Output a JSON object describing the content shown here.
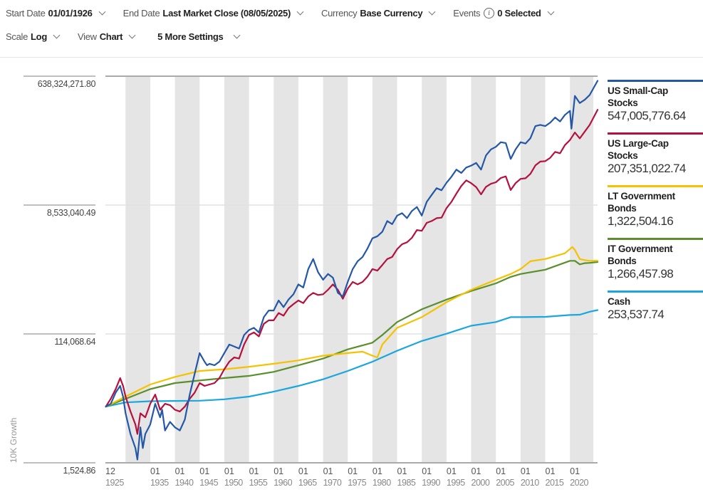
{
  "toolbar": {
    "start_date": {
      "label": "Start Date",
      "value": "01/01/1926"
    },
    "end_date": {
      "label": "End Date",
      "value": "Last Market Close (08/05/2025)"
    },
    "currency": {
      "label": "Currency",
      "value": "Base Currency"
    },
    "events": {
      "label": "Events",
      "value": "0 Selected",
      "icon": "info-icon"
    },
    "scale": {
      "label": "Scale",
      "value": "Log"
    },
    "view": {
      "label": "View",
      "value": "Chart"
    },
    "more_settings": {
      "value": "5 More Settings"
    }
  },
  "legend": [
    {
      "name": "US Small-Cap Stocks",
      "name_line1": "US Small-Cap",
      "name_line2": "Stocks",
      "value": "547,005,776.64",
      "color": "#2557a7"
    },
    {
      "name": "US Large-Cap Stocks",
      "name_line1": "US Large-Cap",
      "name_line2": "Stocks",
      "value": "207,351,022.74",
      "color": "#b5113e"
    },
    {
      "name": "LT Government Bonds",
      "name_line1": "LT Government",
      "name_line2": "Bonds",
      "value": "1,322,504.16",
      "color": "#f5c200"
    },
    {
      "name": "IT Government Bonds",
      "name_line1": "IT Government",
      "name_line2": "Bonds",
      "value": "1,266,457.98",
      "color": "#5a8f2e"
    },
    {
      "name": "Cash",
      "name_line1": "Cash",
      "name_line2": "",
      "value": "253,537.74",
      "color": "#1aa6de"
    }
  ],
  "chart_data": {
    "type": "line",
    "title": "",
    "xlabel": "",
    "ylabel": "10K Growth",
    "yscale": "log",
    "ylim": [
      1524.86,
      638324271.8
    ],
    "xlim": [
      1925.92,
      2025.6
    ],
    "y_ticks": [
      "638,324,271.80",
      "8,533,040.49",
      "114,068.64",
      "1,524.86"
    ],
    "y_tick_values": [
      638324271.8,
      8533040.49,
      114068.64,
      1524.86
    ],
    "x_ticks": [
      {
        "month": "12",
        "year": "1925",
        "value": 1925.92
      },
      {
        "month": "01",
        "year": "1935",
        "value": 1935
      },
      {
        "month": "01",
        "year": "1940",
        "value": 1940
      },
      {
        "month": "01",
        "year": "1945",
        "value": 1945
      },
      {
        "month": "01",
        "year": "1950",
        "value": 1950
      },
      {
        "month": "01",
        "year": "1955",
        "value": 1955
      },
      {
        "month": "01",
        "year": "1960",
        "value": 1960
      },
      {
        "month": "01",
        "year": "1965",
        "value": 1965
      },
      {
        "month": "01",
        "year": "1970",
        "value": 1970
      },
      {
        "month": "01",
        "year": "1975",
        "value": 1975
      },
      {
        "month": "01",
        "year": "1980",
        "value": 1980
      },
      {
        "month": "01",
        "year": "1985",
        "value": 1985
      },
      {
        "month": "01",
        "year": "1990",
        "value": 1990
      },
      {
        "month": "01",
        "year": "1995",
        "value": 1995
      },
      {
        "month": "01",
        "year": "2000",
        "value": 2000
      },
      {
        "month": "01",
        "year": "2005",
        "value": 2005
      },
      {
        "month": "01",
        "year": "2010",
        "value": 2010
      },
      {
        "month": "01",
        "year": "2015",
        "value": 2015
      },
      {
        "month": "01",
        "year": "2020",
        "value": 2020
      }
    ],
    "shaded_bands": [
      [
        1930,
        1935
      ],
      [
        1940,
        1945
      ],
      [
        1950,
        1955
      ],
      [
        1960,
        1965
      ],
      [
        1970,
        1975
      ],
      [
        1980,
        1985
      ],
      [
        1990,
        1995
      ],
      [
        2000,
        2005
      ],
      [
        2010,
        2015
      ],
      [
        2020,
        2025
      ]
    ],
    "grid": true,
    "legend_position": "right",
    "series": [
      {
        "name": "US Small-Cap Stocks",
        "color": "#2557a7",
        "x": [
          1926,
          1927,
          1928,
          1928.9,
          1929.5,
          1930,
          1931,
          1932,
          1932.4,
          1933,
          1933.5,
          1934,
          1935,
          1936,
          1937,
          1937.4,
          1938,
          1939,
          1940,
          1941,
          1942,
          1943,
          1944,
          1945,
          1946,
          1946.5,
          1947,
          1948,
          1949,
          1950,
          1951,
          1952,
          1953,
          1954,
          1955,
          1956,
          1957,
          1958,
          1959,
          1960,
          1961,
          1962,
          1963,
          1964,
          1965,
          1966,
          1967,
          1968,
          1969,
          1970,
          1971,
          1972,
          1973,
          1974,
          1975,
          1976,
          1977,
          1978,
          1979,
          1980,
          1981,
          1982,
          1983,
          1984,
          1985,
          1986,
          1987,
          1988,
          1989,
          1990,
          1991,
          1992,
          1993,
          1994,
          1995,
          1996,
          1997,
          1998,
          1999,
          2000,
          2001,
          2002,
          2003,
          2004,
          2005,
          2006,
          2007,
          2008,
          2009,
          2010,
          2011,
          2012,
          2013,
          2014,
          2015,
          2016,
          2017,
          2018,
          2019,
          2020,
          2020.3,
          2021,
          2022,
          2023,
          2024,
          2025.6
        ],
        "y": [
          10000,
          11000,
          16000,
          20000,
          14000,
          8000,
          4000,
          2500,
          1700,
          5000,
          2500,
          4000,
          5500,
          11000,
          7000,
          9000,
          4500,
          6000,
          5000,
          4500,
          6500,
          15000,
          30000,
          60000,
          45000,
          40000,
          42000,
          40000,
          45000,
          60000,
          80000,
          75000,
          70000,
          110000,
          130000,
          140000,
          120000,
          200000,
          250000,
          250000,
          350000,
          280000,
          360000,
          430000,
          600000,
          540000,
          1000000,
          1400000,
          900000,
          700000,
          850000,
          750000,
          450000,
          400000,
          650000,
          1000000,
          1300000,
          1500000,
          2000000,
          2800000,
          3000000,
          3500000,
          5000000,
          4500000,
          6000000,
          6500000,
          5500000,
          7000000,
          8000000,
          6000000,
          9500000,
          12000000,
          15000000,
          14000000,
          18000000,
          22000000,
          28000000,
          25000000,
          30000000,
          32000000,
          35000000,
          28000000,
          45000000,
          55000000,
          60000000,
          70000000,
          68000000,
          40000000,
          55000000,
          70000000,
          67000000,
          80000000,
          120000000,
          125000000,
          120000000,
          135000000,
          160000000,
          140000000,
          175000000,
          200000000,
          110000000,
          330000000,
          260000000,
          290000000,
          340000000,
          547005776.64
        ]
      },
      {
        "name": "US Large-Cap Stocks",
        "color": "#b5113e",
        "x": [
          1926,
          1927,
          1928,
          1928.9,
          1929.5,
          1930,
          1931,
          1932,
          1932.4,
          1933,
          1934,
          1935,
          1936,
          1937,
          1938,
          1939,
          1940,
          1941,
          1942,
          1943,
          1944,
          1945,
          1946,
          1947,
          1948,
          1949,
          1950,
          1951,
          1952,
          1953,
          1954,
          1955,
          1956,
          1957,
          1958,
          1959,
          1960,
          1961,
          1962,
          1963,
          1964,
          1965,
          1966,
          1967,
          1968,
          1969,
          1970,
          1971,
          1972,
          1973,
          1974,
          1975,
          1976,
          1977,
          1978,
          1979,
          1980,
          1981,
          1982,
          1983,
          1984,
          1985,
          1986,
          1987,
          1988,
          1989,
          1990,
          1991,
          1992,
          1993,
          1994,
          1995,
          1996,
          1997,
          1998,
          1999,
          2000,
          2001,
          2002,
          2003,
          2004,
          2005,
          2006,
          2007,
          2008,
          2009,
          2010,
          2011,
          2012,
          2013,
          2014,
          2015,
          2016,
          2017,
          2018,
          2019,
          2020,
          2021,
          2022,
          2023,
          2024,
          2025.6
        ],
        "y": [
          10000,
          13000,
          18000,
          26000,
          20000,
          14000,
          8500,
          5500,
          4000,
          8000,
          7000,
          11000,
          15000,
          9000,
          11000,
          10500,
          9000,
          8500,
          10000,
          13000,
          16000,
          22000,
          20000,
          21000,
          22000,
          26000,
          35000,
          45000,
          52000,
          50000,
          80000,
          110000,
          120000,
          105000,
          160000,
          180000,
          180000,
          230000,
          210000,
          270000,
          310000,
          350000,
          320000,
          400000,
          450000,
          420000,
          430000,
          500000,
          600000,
          500000,
          370000,
          520000,
          650000,
          600000,
          650000,
          780000,
          1000000,
          950000,
          1150000,
          1400000,
          1500000,
          1950000,
          2300000,
          2450000,
          2850000,
          3700000,
          3600000,
          4700000,
          5000000,
          5500000,
          5600000,
          7700000,
          9500000,
          12500000,
          16200000,
          19500000,
          17800000,
          15600000,
          12200000,
          15700000,
          17400000,
          18300000,
          21100000,
          22300000,
          14100000,
          17800000,
          20500000,
          20900000,
          24300000,
          32200000,
          36600000,
          37100000,
          41500000,
          50600000,
          48300000,
          63600000,
          75300000,
          96900000,
          79400000,
          100000000,
          125000000,
          207351022.74
        ]
      },
      {
        "name": "LT Government Bonds",
        "color": "#f5c200",
        "x": [
          1926,
          1930,
          1935,
          1940,
          1945,
          1950,
          1955,
          1960,
          1965,
          1970,
          1975,
          1978,
          1980,
          1981,
          1982,
          1985,
          1990,
          1995,
          2000,
          2005,
          2008,
          2010,
          2012,
          2015,
          2019,
          2020.5,
          2021,
          2022,
          2023,
          2024,
          2025.6
        ],
        "y": [
          10000,
          14000,
          21000,
          27000,
          33000,
          35000,
          38000,
          42000,
          47000,
          55000,
          60000,
          63000,
          55000,
          52000,
          80000,
          140000,
          200000,
          330000,
          500000,
          700000,
          850000,
          1000000,
          1300000,
          1400000,
          1700000,
          2100000,
          1900000,
          1400000,
          1350000,
          1320000,
          1322504.16
        ]
      },
      {
        "name": "IT Government Bonds",
        "color": "#5a8f2e",
        "x": [
          1926,
          1930,
          1935,
          1940,
          1945,
          1950,
          1955,
          1960,
          1965,
          1970,
          1975,
          1980,
          1982,
          1985,
          1990,
          1995,
          2000,
          2005,
          2008,
          2010,
          2015,
          2020,
          2021,
          2022,
          2023,
          2024,
          2025.6
        ],
        "y": [
          10000,
          13000,
          18000,
          22000,
          24000,
          26000,
          28000,
          32000,
          40000,
          50000,
          68000,
          85000,
          110000,
          170000,
          260000,
          360000,
          480000,
          620000,
          770000,
          850000,
          980000,
          1320000,
          1320000,
          1170000,
          1220000,
          1230000,
          1266457.98
        ]
      },
      {
        "name": "Cash",
        "color": "#1aa6de",
        "x": [
          1926,
          1930,
          1935,
          1940,
          1945,
          1950,
          1955,
          1960,
          1965,
          1970,
          1975,
          1980,
          1985,
          1990,
          1995,
          2000,
          2005,
          2008,
          2010,
          2015,
          2020,
          2022,
          2023,
          2024,
          2025.6
        ],
        "y": [
          10000,
          11500,
          12000,
          12100,
          12200,
          12800,
          14000,
          16500,
          20000,
          25000,
          33000,
          45000,
          65000,
          90000,
          115000,
          150000,
          170000,
          200000,
          200000,
          202000,
          215000,
          217000,
          228000,
          240000,
          253537.74
        ]
      }
    ]
  }
}
